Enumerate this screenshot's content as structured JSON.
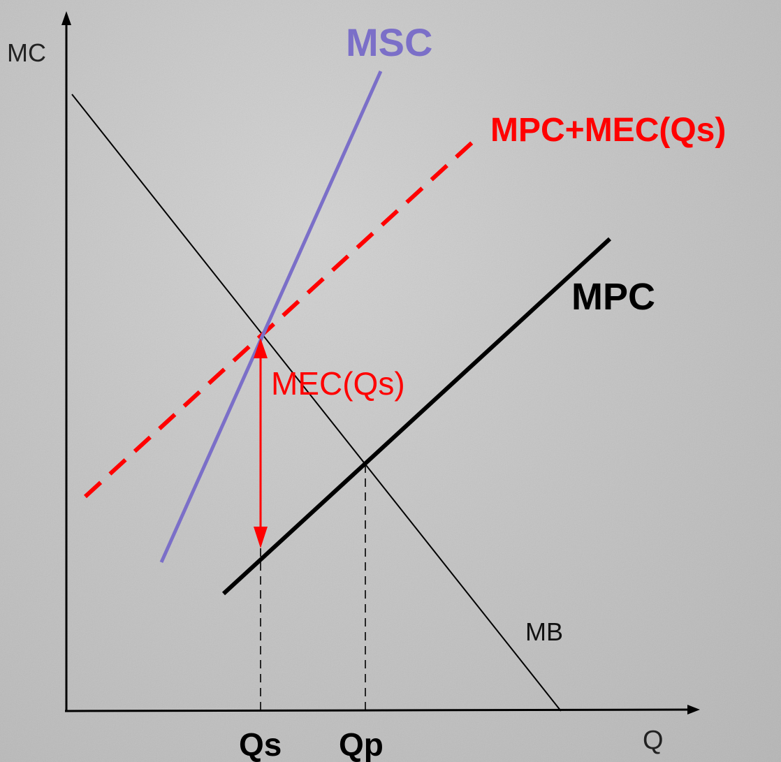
{
  "axes": {
    "y_label": "MC",
    "x_label": "Q"
  },
  "curves": {
    "msc": {
      "label": "MSC",
      "color": "#7b6fc8"
    },
    "mpc_mec": {
      "label": "MPC+MEC(Qs)",
      "color": "#ff0000"
    },
    "mpc": {
      "label": "MPC",
      "color": "#000000"
    },
    "mb": {
      "label": "MB",
      "color": "#000000"
    }
  },
  "annotations": {
    "mec": {
      "label": "MEC(Qs)",
      "color": "#ff0000"
    }
  },
  "quantities": {
    "qs": "Qs",
    "qp": "Qp"
  }
}
